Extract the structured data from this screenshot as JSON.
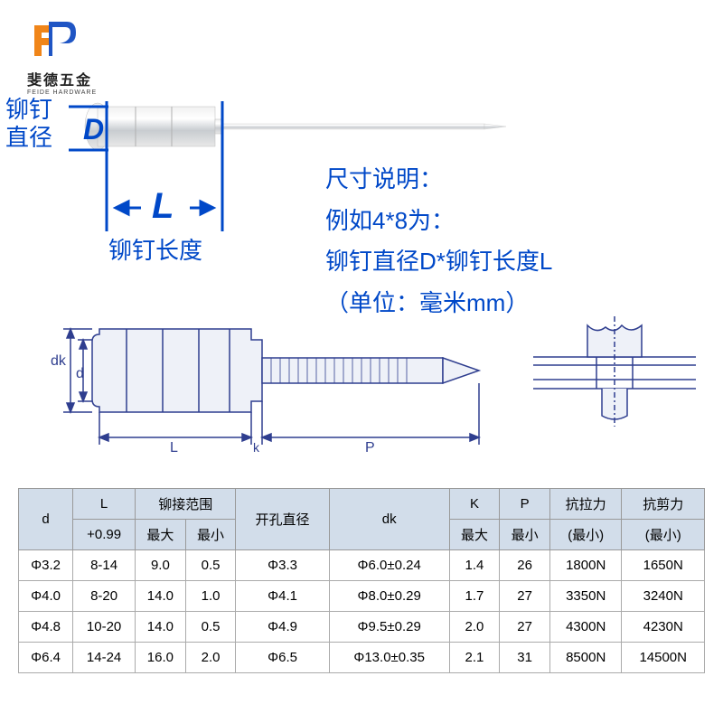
{
  "logo": {
    "text": "斐德五金",
    "sub": "FEIDE HARDWARE",
    "color_orange": "#f08519",
    "color_blue": "#1f55c4"
  },
  "labels": {
    "diameter": "铆钉\n直径",
    "d": "D",
    "l": "L",
    "length": "铆钉长度"
  },
  "desc": {
    "l1": "尺寸说明：",
    "l2": "例如4*8为：",
    "l3": "铆钉直径D*铆钉长度L",
    "l4": "（单位：毫米mm）"
  },
  "tech_labels": {
    "dk": "dk",
    "d": "d",
    "L": "L",
    "k": "k",
    "P": "P"
  },
  "table": {
    "headers": {
      "d": "d",
      "L": "L",
      "L_sub": "+0.99",
      "range": "铆接范围",
      "range_max": "最大",
      "range_min": "最小",
      "hole": "开孔直径",
      "dk": "dk",
      "K": "K",
      "K_sub": "最大",
      "P": "P",
      "P_sub": "最小",
      "tensile": "抗拉力",
      "tensile_sub": "(最小)",
      "shear": "抗剪力",
      "shear_sub": "(最小)"
    },
    "rows": [
      {
        "d": "Φ3.2",
        "L": "8-14",
        "rmax": "9.0",
        "rmin": "0.5",
        "hole": "Φ3.3",
        "dk": "Φ6.0±0.24",
        "K": "1.4",
        "P": "26",
        "tensile": "1800N",
        "shear": "1650N"
      },
      {
        "d": "Φ4.0",
        "L": "8-20",
        "rmax": "14.0",
        "rmin": "1.0",
        "hole": "Φ4.1",
        "dk": "Φ8.0±0.29",
        "K": "1.7",
        "P": "27",
        "tensile": "3350N",
        "shear": "3240N"
      },
      {
        "d": "Φ4.8",
        "L": "10-20",
        "rmax": "14.0",
        "rmin": "0.5",
        "hole": "Φ4.9",
        "dk": "Φ9.5±0.29",
        "K": "2.0",
        "P": "27",
        "tensile": "4300N",
        "shear": "4230N"
      },
      {
        "d": "Φ6.4",
        "L": "14-24",
        "rmax": "16.0",
        "rmin": "2.0",
        "hole": "Φ6.5",
        "dk": "Φ13.0±0.35",
        "K": "2.1",
        "P": "31",
        "tensile": "8500N",
        "shear": "14500N"
      }
    ]
  },
  "colors": {
    "line_blue": "#0048c8",
    "tech_blue": "#2f3e8f",
    "header_bg": "#d2ddea"
  }
}
